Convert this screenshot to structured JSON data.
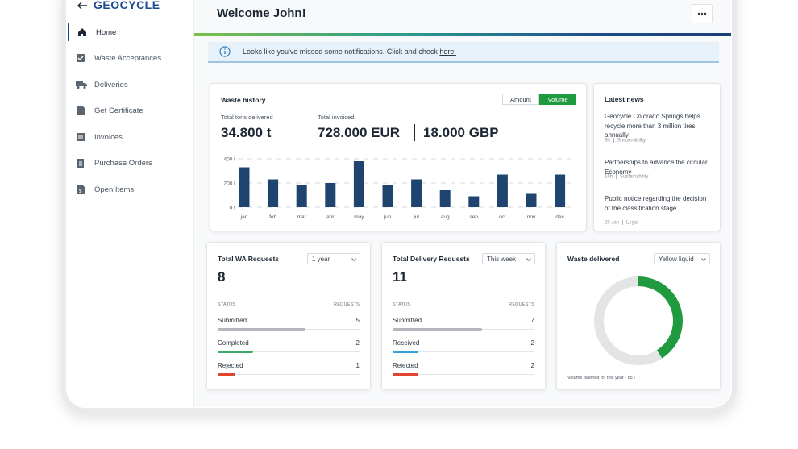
{
  "sidebar": {
    "logo": "GEOCYCLE",
    "menu": [
      "Home",
      "Waste Acceptances",
      "Deliveries",
      "Get Certificate",
      "Invoices",
      "Purchase Orders",
      "Open Items"
    ]
  },
  "header": {
    "title": "Welcome John!"
  },
  "notification": {
    "message": "Looks like you've missed some notifications. Click and check",
    "link": "here."
  },
  "waste_history": {
    "title": "Waste history",
    "toggle": [
      "Amount",
      "Volume"
    ],
    "tons_label": "Total tons delivered",
    "tons_value": "34.800 t",
    "invoiced_label": "Total invoiced",
    "invoiced_eur": "728.000 EUR",
    "invoiced_gbp": "18.000 GBP",
    "chart": {
      "type": "bar",
      "categories": [
        "jan",
        "feb",
        "mar",
        "apr",
        "may",
        "jun",
        "jul",
        "aug",
        "sep",
        "oct",
        "nov",
        "dec"
      ],
      "values": [
        330,
        230,
        180,
        200,
        380,
        180,
        230,
        140,
        90,
        270,
        110,
        270
      ],
      "color": "#1f4470",
      "ylim": [
        0,
        400
      ],
      "yticks": [
        {
          "value": 0,
          "label": "0 t"
        },
        {
          "value": 200,
          "label": "200 t"
        },
        {
          "value": 400,
          "label": "400 t"
        }
      ],
      "grid": true
    }
  },
  "news": {
    "title": "Latest news",
    "items": [
      {
        "title": "Geocycle Colorado Springs helps recycle more than 3 million tires annually",
        "time": "8h",
        "tag": "Sustainability"
      },
      {
        "title": "Partnerships to advance the circular Economy",
        "time": "16h",
        "tag": "Sustainability"
      },
      {
        "title": "Public notice regarding the decision of the classification stage",
        "time": "20 Jan",
        "tag": "Legal"
      }
    ]
  },
  "wa_requests": {
    "title": "Total WA Requests",
    "period": "1 year",
    "total": 8,
    "status_header": "STATUS",
    "count_header": "REQUESTS",
    "rows": [
      {
        "label": "Submitted",
        "count": 5,
        "color": "#b5b9be"
      },
      {
        "label": "Completed",
        "count": 2,
        "color": "#3aaa6a"
      },
      {
        "label": "Rejected",
        "count": 1,
        "color": "#e0452f"
      }
    ]
  },
  "delivery_requests": {
    "title": "Total Delivery Requests",
    "period": "This week",
    "total": 11,
    "status_header": "STATUS",
    "count_header": "REQUESTS",
    "rows": [
      {
        "label": "Submitted",
        "count": 7,
        "color": "#b5b9be"
      },
      {
        "label": "Received",
        "count": 2,
        "color": "#3a9fd6"
      },
      {
        "label": "Rejected",
        "count": 2,
        "color": "#e0452f"
      }
    ]
  },
  "waste_delivered": {
    "title": "Waste delivered",
    "product": "Yellow liquid",
    "footer": "Volume planned for this year - 65 t",
    "donut": {
      "type": "pie",
      "values": [
        41,
        59
      ],
      "colors": [
        "#1f9a3e",
        "#e3e4e6"
      ]
    }
  }
}
